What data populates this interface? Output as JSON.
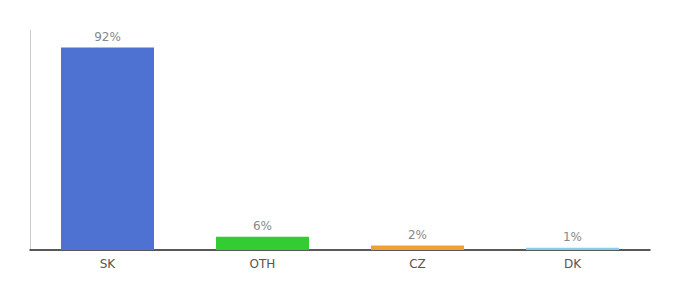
{
  "chart_data": {
    "type": "bar",
    "categories": [
      "SK",
      "OTH",
      "CZ",
      "DK"
    ],
    "values": [
      92,
      6,
      2,
      1
    ],
    "value_labels": [
      "92%",
      "6%",
      "2%",
      "1%"
    ],
    "colors": [
      "#4d72d1",
      "#33cc33",
      "#f0a030",
      "#87ceeb"
    ],
    "ylim": [
      0,
      100
    ],
    "grid": false,
    "data_labels": true,
    "tick_labels": "x"
  }
}
